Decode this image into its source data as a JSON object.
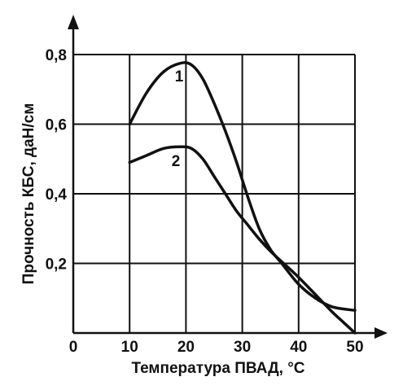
{
  "chart_data": {
    "type": "line",
    "xlabel": "Температура ПВАД, °С",
    "ylabel": "Прочность КБС, даН/см",
    "xlim": [
      0,
      50
    ],
    "ylim": [
      0,
      0.8
    ],
    "x_ticks": [
      "0",
      "10",
      "20",
      "30",
      "40",
      "50"
    ],
    "y_ticks": [
      "0,2",
      "0,4",
      "0,6",
      "0,8"
    ],
    "grid": true,
    "series": [
      {
        "name": "1",
        "x": [
          10,
          13,
          16,
          19,
          21,
          23,
          25,
          27,
          29,
          31,
          33,
          35,
          37,
          40,
          43,
          46,
          50
        ],
        "y": [
          0.6,
          0.69,
          0.75,
          0.775,
          0.77,
          0.73,
          0.66,
          0.58,
          0.49,
          0.39,
          0.3,
          0.24,
          0.2,
          0.14,
          0.1,
          0.075,
          0.065
        ]
      },
      {
        "name": "2",
        "x": [
          10,
          13,
          16,
          19,
          21,
          23,
          25,
          27,
          29,
          31,
          33,
          35,
          37,
          40,
          43,
          46,
          48,
          50
        ],
        "y": [
          0.49,
          0.51,
          0.53,
          0.535,
          0.53,
          0.5,
          0.45,
          0.4,
          0.35,
          0.31,
          0.27,
          0.235,
          0.205,
          0.16,
          0.11,
          0.06,
          0.03,
          0.0
        ]
      }
    ]
  }
}
